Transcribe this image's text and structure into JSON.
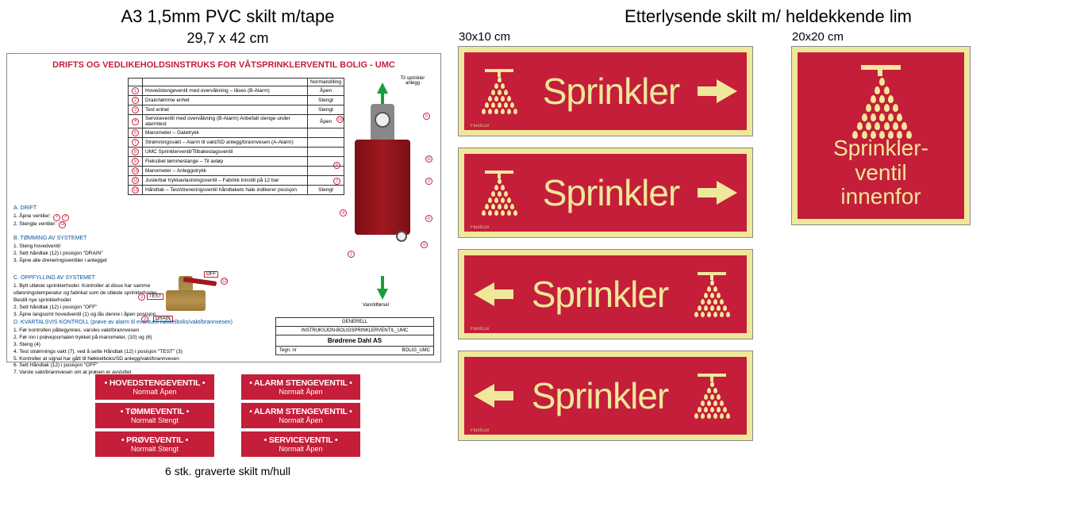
{
  "left": {
    "title": "A3   1,5mm PVC skilt m/tape",
    "subtitle": "29,7 x 42 cm",
    "tech_title": "DRIFTS OG VEDLIKEHOLDSINSTRUKS FOR VÅTSPRINKLERVENTIL BOLIG - UMC",
    "tbl_head_desc": "",
    "tbl_head_stat": "Normalstilling",
    "components": [
      {
        "n": "1",
        "d": "Hovedstengeventil med overvåkning – låses (B-Alarm)",
        "s": "Åpen"
      },
      {
        "n": "2",
        "d": "Drain/tømme enhet",
        "s": "Stengt"
      },
      {
        "n": "3",
        "d": "Test enhet",
        "s": "Stengt"
      },
      {
        "n": "4",
        "d": "Serviceventil med overvåkning (B-Alarm) Anbefalt stenge under alarmtest",
        "s": "Åpen"
      },
      {
        "n": "6",
        "d": "Manometer – Gatetrykk",
        "s": ""
      },
      {
        "n": "7",
        "d": "Strømningsvakt – Alarm til vakt/SD anlegg/brannvesen (A-Alarm)",
        "s": ""
      },
      {
        "n": "8",
        "d": "UMC Sprinklerventil/Tilbakeslagsventil",
        "s": ""
      },
      {
        "n": "9",
        "d": "Fleksibel tømmeslange – Til avløp",
        "s": ""
      },
      {
        "n": "10",
        "d": "Manometer – Anleggstrykk",
        "s": ""
      },
      {
        "n": "11",
        "d": "Justerbar trykkavlastningsventil – Fabrikk innstilt på 12 bar",
        "s": ""
      },
      {
        "n": "12",
        "d": "Håndtak – Test/dreneringsventil håndtakets hale indikerer posisjon",
        "s": "Stengt"
      }
    ],
    "secA_h": "A. DRIFT",
    "secA_1": "1. Åpne ventiler:",
    "secA_2": "2. Stengte ventiler:",
    "secB_h": "B. TØMMING AV SYSTEMET",
    "secB_1": "1. Steng hovedventil",
    "secB_2": "2. Sett håndtak (12) i posisjon \"DRAIN\"",
    "secB_3": "3. Åpne alle dreneringsventiler i anlegget",
    "secC_h": "C. OPPFYLLING AV SYSTEMET",
    "secC_1": "1. Bytt utløste sprinklerhoder. Kontroller at disse har samme utløsningstemperatur og fabrikat som de utløste sprinklerhoder. Bestill nye sprinklerhoder",
    "secC_2": "2. Sett håndtak (12) i posisjon \"OFF\"",
    "secC_3": "3. Åpne langsomt hovedventil (1) og lås denne i åpen posisjon",
    "secD_h": "D. KVARTALSVIS KONTROLL (prøve av alarm til eventuell nøkkelboks/vakt/brannvesen)",
    "secD_1": "1. Før kontrollen påbegynnes, varsles vakt/brannvesen",
    "secD_2": "2. Før inn i prøvejournalen trykket på manometer, (10) og (6)",
    "secD_3": "3. Steng (4)",
    "secD_4": "4. Test strømnings vakt (7), ved å sette Håndtak (12) i posisjon \"TEST\" (3)",
    "secD_5": "5. Kontroller at signal har gått til Nøkkelboks/SD anlegg/vakt/brannvesen",
    "secD_6": "6. Sett Håndtak (12) i posisjon \"OFF\"",
    "secD_7": "7. Varsle vakt/brannvesen om at prøven er avsluttet",
    "tb_gen": "GENERELL",
    "tb_inst": "INSTRUKSJON-BOLIGSPRINKLERVENTIL_UMC",
    "tb_company": "Brødrene Dahl AS",
    "tb_code": "BOLIG_UMC",
    "valve_top_label": "Til sprinkler anlegg",
    "valve_bot_label": "Vanntilførsel",
    "brass_off": "OFF",
    "brass_test": "TEST",
    "brass_drain": "DRAIN",
    "engraved": [
      [
        {
          "t": "HOVEDSTENGEVENTIL",
          "s": "Normalt Åpen"
        },
        {
          "t": "TØMMEVENTIL",
          "s": "Normalt Stengt"
        },
        {
          "t": "PRØVEVENTIL",
          "s": "Normalt Stengt"
        }
      ],
      [
        {
          "t": "ALARM STENGEVENTIL",
          "s": "Normalt Åpen"
        },
        {
          "t": "ALARM STENGEVENTIL",
          "s": "Normalt Åpen"
        },
        {
          "t": "SERVICEVENTIL",
          "s": "Normalt Åpen"
        }
      ]
    ],
    "engraved_note": "6 stk. graverte skilt m/hull"
  },
  "right": {
    "title": "Etterlysende skilt m/ heldekkende lim",
    "dim_rect": "30x10 cm",
    "dim_sq": "20x20 cm",
    "word": "Sprinkler",
    "sq_text": "Sprinkler-\nventil\ninnenfor",
    "brand": "FluorLux"
  },
  "colors": {
    "red": "#c41e3a",
    "glow": "#efe89a",
    "blue": "#0055a4",
    "green": "#1a9e3a"
  }
}
